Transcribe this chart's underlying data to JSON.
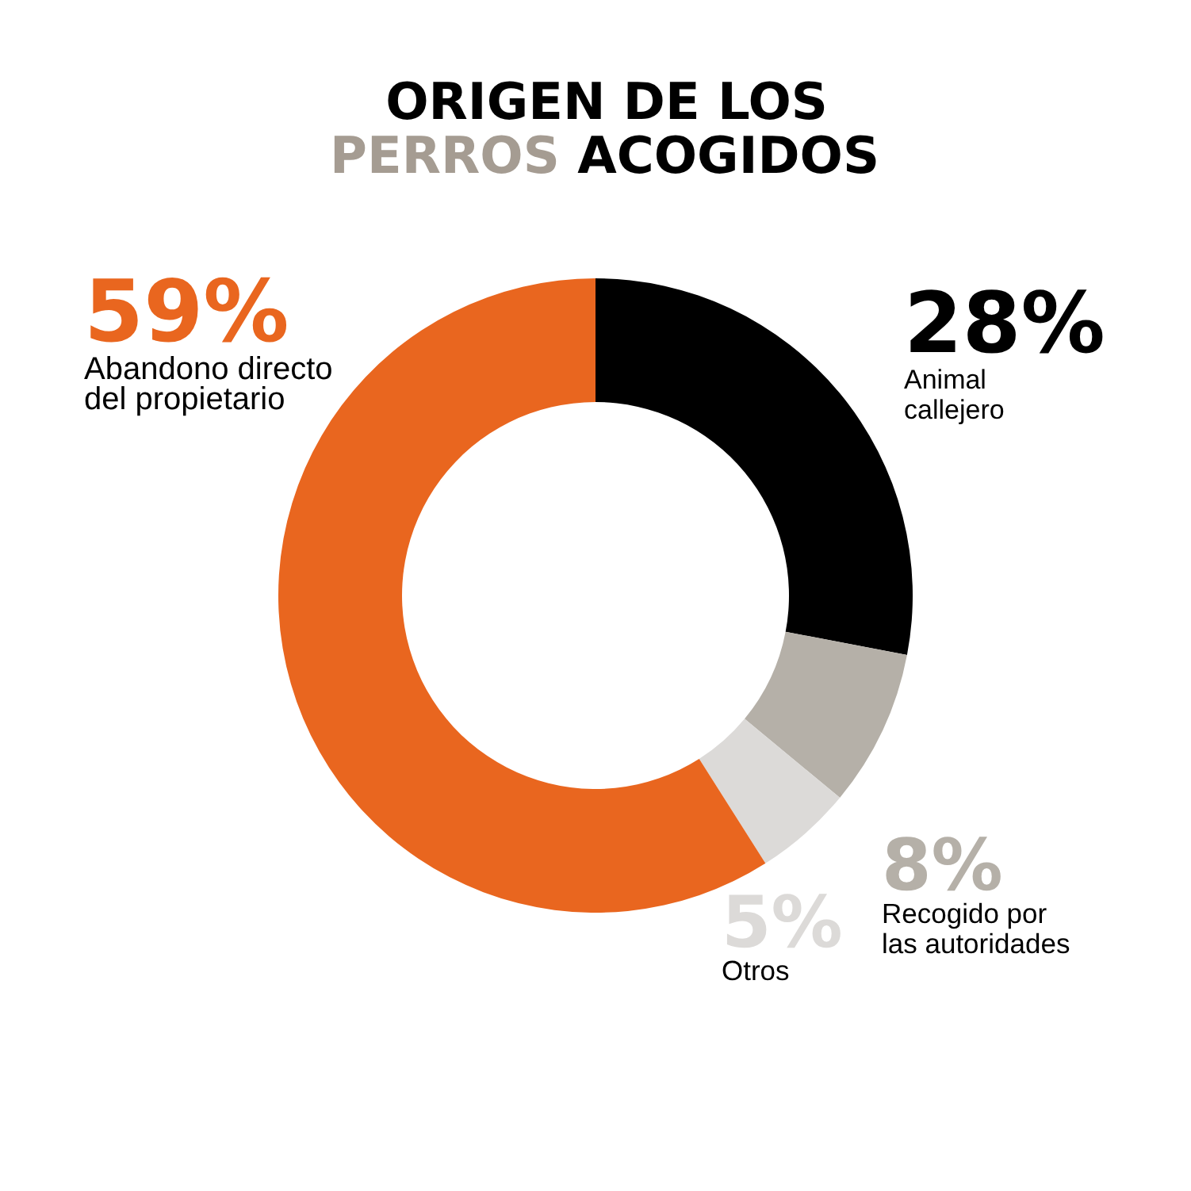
{
  "chart_data": {
    "type": "donut",
    "title": "ORIGEN DE LOS\nPERROS ACOGIDOS",
    "categories": [
      "Animal\ncallejero",
      "Recogido por\nlas autoridades",
      "Otros",
      "Abandono directo\ndel propietario"
    ],
    "values": [
      28,
      8,
      5,
      59
    ],
    "value_labels": [
      "28%",
      "8%",
      "5%",
      "59%"
    ],
    "colors": [
      "#000000",
      "#b5b0a8",
      "#dcdad8",
      "#e9661f"
    ]
  }
}
